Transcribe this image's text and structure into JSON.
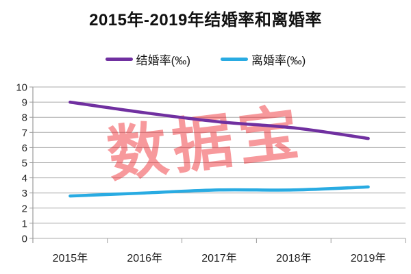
{
  "title": "2015年-2019年结婚率和离婚率",
  "watermark": "数据宝",
  "chart_data": {
    "type": "line",
    "title": "2015年-2019年结婚率和离婚率",
    "categories": [
      "2015年",
      "2016年",
      "2017年",
      "2018年",
      "2019年"
    ],
    "series": [
      {
        "name": "结婚率(‰)",
        "color": "#7030A0",
        "values": [
          9.0,
          8.3,
          7.7,
          7.3,
          6.6
        ]
      },
      {
        "name": "离婚率(‰)",
        "color": "#29ABE2",
        "values": [
          2.8,
          3.0,
          3.2,
          3.2,
          3.4
        ]
      }
    ],
    "xlabel": "",
    "ylabel": "",
    "ylim": [
      0,
      10
    ],
    "ytick_step": 1,
    "grid": "horizontal",
    "legend_position": "top",
    "watermark": "数据宝"
  },
  "style": {
    "gridline_color": "#ABABAB",
    "axis_color": "#9B9B9B",
    "watermark_color": "rgba(237,28,36,0.45)"
  }
}
